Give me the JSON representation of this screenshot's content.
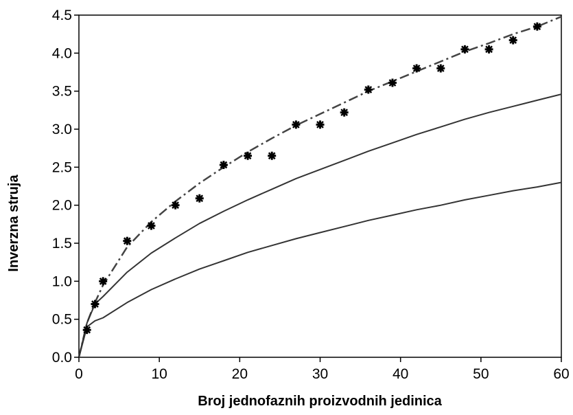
{
  "chart_data": {
    "type": "line",
    "title": "",
    "xlabel": "Broj jednofaznih proizvodnih jedinica",
    "ylabel": "Inverzna struja",
    "xlim": [
      0,
      60
    ],
    "ylim": [
      0,
      4.5
    ],
    "xticks": [
      0,
      10,
      20,
      30,
      40,
      50,
      60
    ],
    "yticks": [
      0.0,
      0.5,
      1.0,
      1.5,
      2.0,
      2.5,
      3.0,
      3.5,
      4.0,
      4.5
    ],
    "xtick_labels": [
      "0",
      "10",
      "20",
      "30",
      "40",
      "50",
      "60"
    ],
    "ytick_labels": [
      "0.0",
      "0.5",
      "1.0",
      "1.5",
      "2.0",
      "2.5",
      "3.0",
      "3.5",
      "4.0",
      "4.5"
    ],
    "grid": false,
    "legend": "none",
    "series": [
      {
        "style": "dashdot",
        "color": "#444444",
        "x": [
          0,
          1,
          2,
          3,
          6,
          9,
          12,
          15,
          18,
          21,
          24,
          27,
          30,
          33,
          36,
          39,
          42,
          45,
          48,
          51,
          54,
          57,
          60
        ],
        "y": [
          0.0,
          0.45,
          0.72,
          0.95,
          1.45,
          1.78,
          2.05,
          2.29,
          2.5,
          2.7,
          2.88,
          3.05,
          3.2,
          3.35,
          3.5,
          3.63,
          3.76,
          3.89,
          4.02,
          4.13,
          4.25,
          4.35,
          4.48
        ]
      },
      {
        "style": "solid",
        "color": "#333333",
        "x": [
          0,
          1,
          2,
          3,
          6,
          9,
          12,
          15,
          18,
          21,
          24,
          27,
          30,
          33,
          36,
          39,
          42,
          45,
          48,
          51,
          54,
          57,
          60
        ],
        "y": [
          0.0,
          0.45,
          0.7,
          0.8,
          1.12,
          1.37,
          1.57,
          1.76,
          1.92,
          2.07,
          2.21,
          2.35,
          2.47,
          2.59,
          2.71,
          2.82,
          2.93,
          3.03,
          3.13,
          3.22,
          3.3,
          3.38,
          3.46
        ]
      },
      {
        "style": "solid",
        "color": "#333333",
        "x": [
          0,
          1,
          2,
          3,
          6,
          9,
          12,
          15,
          18,
          21,
          24,
          27,
          30,
          33,
          36,
          39,
          42,
          45,
          48,
          51,
          54,
          57,
          60
        ],
        "y": [
          0.0,
          0.4,
          0.48,
          0.52,
          0.72,
          0.89,
          1.03,
          1.16,
          1.27,
          1.38,
          1.47,
          1.56,
          1.64,
          1.72,
          1.8,
          1.87,
          1.94,
          2.0,
          2.07,
          2.13,
          2.19,
          2.24,
          2.3
        ]
      },
      {
        "style": "markers",
        "marker": "star",
        "color": "#000000",
        "x": [
          1,
          2,
          3,
          6,
          9,
          12,
          15,
          18,
          21,
          24,
          27,
          30,
          33,
          36,
          39,
          42,
          45,
          48,
          51,
          54,
          57
        ],
        "y": [
          0.36,
          0.7,
          1.0,
          1.53,
          1.73,
          2.0,
          2.09,
          2.53,
          2.65,
          2.65,
          3.06,
          3.06,
          3.22,
          3.52,
          3.61,
          3.8,
          3.8,
          4.05,
          4.05,
          4.17,
          4.35
        ]
      }
    ]
  }
}
